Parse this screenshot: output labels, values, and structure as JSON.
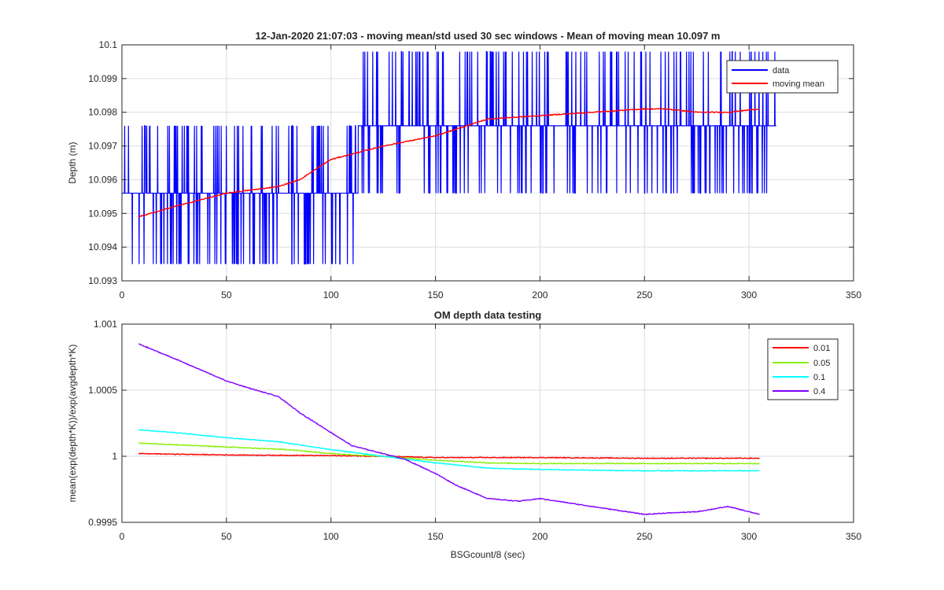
{
  "chart_data": [
    {
      "type": "line",
      "title": "12-Jan-2020 21:07:03 - moving mean/std used 30 sec windows - Mean of moving mean 10.097 m",
      "xlabel": "",
      "ylabel": "Depth (m)",
      "xlim": [
        0,
        350
      ],
      "ylim": [
        10.093,
        10.1
      ],
      "xticks": [
        0,
        50,
        100,
        150,
        200,
        250,
        300,
        350
      ],
      "yticks": [
        10.093,
        10.094,
        10.095,
        10.096,
        10.097,
        10.098,
        10.099,
        10.1
      ],
      "ytick_labels": [
        "10.093",
        "10.094",
        "10.095",
        "10.096",
        "10.097",
        "10.098",
        "10.099",
        "10.1"
      ],
      "grid": true,
      "legend_position": "top-right",
      "series": [
        {
          "name": "data",
          "color": "#0000ff",
          "description_levels": [
            10.0935,
            10.0956,
            10.0976,
            10.0998
          ],
          "x_range": [
            0,
            313
          ],
          "x": [
            0,
            25,
            50,
            75,
            100,
            113,
            125,
            150,
            175,
            200,
            225,
            250,
            275,
            300,
            313
          ],
          "min": [
            10.0935,
            10.0935,
            10.0935,
            10.0935,
            10.0935,
            10.0935,
            10.0956,
            10.0956,
            10.0956,
            10.0956,
            10.0956,
            10.0956,
            10.0956,
            10.0956,
            10.0956
          ],
          "max": [
            10.0976,
            10.0976,
            10.0978,
            10.0978,
            10.0978,
            10.0998,
            10.0998,
            10.0998,
            10.0998,
            10.0998,
            10.0998,
            10.0998,
            10.0998,
            10.0998,
            10.0998
          ]
        },
        {
          "name": "moving mean",
          "color": "#ff0000",
          "x": [
            8,
            25,
            50,
            75,
            85,
            100,
            125,
            150,
            165,
            175,
            200,
            225,
            250,
            260,
            275,
            290,
            305
          ],
          "y": [
            10.0949,
            10.0952,
            10.0956,
            10.0958,
            10.096,
            10.0966,
            10.097,
            10.0973,
            10.0976,
            10.0978,
            10.0979,
            10.098,
            10.0981,
            10.0981,
            10.098,
            10.098,
            10.0981
          ]
        }
      ]
    },
    {
      "type": "line",
      "title": "OM depth data testing",
      "xlabel": "BSGcount/8 (sec)",
      "ylabel": "mean(exp(depth*K))/exp(avgdepth*K)",
      "xlim": [
        0,
        350
      ],
      "ylim": [
        0.9995,
        1.001
      ],
      "xticks": [
        0,
        50,
        100,
        150,
        200,
        250,
        300,
        350
      ],
      "yticks": [
        0.9995,
        1.0,
        1.0005,
        1.001
      ],
      "ytick_labels": [
        "0.9995",
        "1",
        "1.0005",
        "1.001"
      ],
      "grid": true,
      "legend_position": "top-right",
      "series": [
        {
          "name": "0.01",
          "color": "#ff0000",
          "x": [
            8,
            50,
            100,
            125,
            150,
            200,
            250,
            305
          ],
          "y": [
            1.00002,
            1.00001,
            1.000005,
            1.0,
            0.99999,
            0.99999,
            0.999985,
            0.999985
          ]
        },
        {
          "name": "0.05",
          "color": "#88ee00",
          "x": [
            8,
            50,
            80,
            100,
            125,
            150,
            175,
            200,
            250,
            305
          ],
          "y": [
            1.0001,
            1.00007,
            1.00005,
            1.00002,
            1.0,
            0.99997,
            0.99995,
            0.999945,
            0.999945,
            0.999945
          ]
        },
        {
          "name": "0.1",
          "color": "#00ffff",
          "x": [
            8,
            25,
            50,
            75,
            100,
            125,
            150,
            175,
            200,
            250,
            275,
            305
          ],
          "y": [
            1.0002,
            1.00018,
            1.00014,
            1.00011,
            1.00005,
            1.0,
            0.99995,
            0.99991,
            0.9999,
            0.99989,
            0.99989,
            0.99989
          ]
        },
        {
          "name": "0.4",
          "color": "#7f00ff",
          "x": [
            8,
            25,
            50,
            60,
            75,
            85,
            100,
            110,
            125,
            135,
            150,
            160,
            175,
            190,
            200,
            225,
            250,
            260,
            275,
            290,
            305
          ],
          "y": [
            1.00085,
            1.00074,
            1.00057,
            1.00052,
            1.00045,
            1.00033,
            1.00018,
            1.00008,
            1.00002,
            0.99998,
            0.99987,
            0.99978,
            0.99968,
            0.99966,
            0.99968,
            0.99962,
            0.99956,
            0.99957,
            0.99958,
            0.99962,
            0.99956
          ]
        }
      ]
    }
  ]
}
